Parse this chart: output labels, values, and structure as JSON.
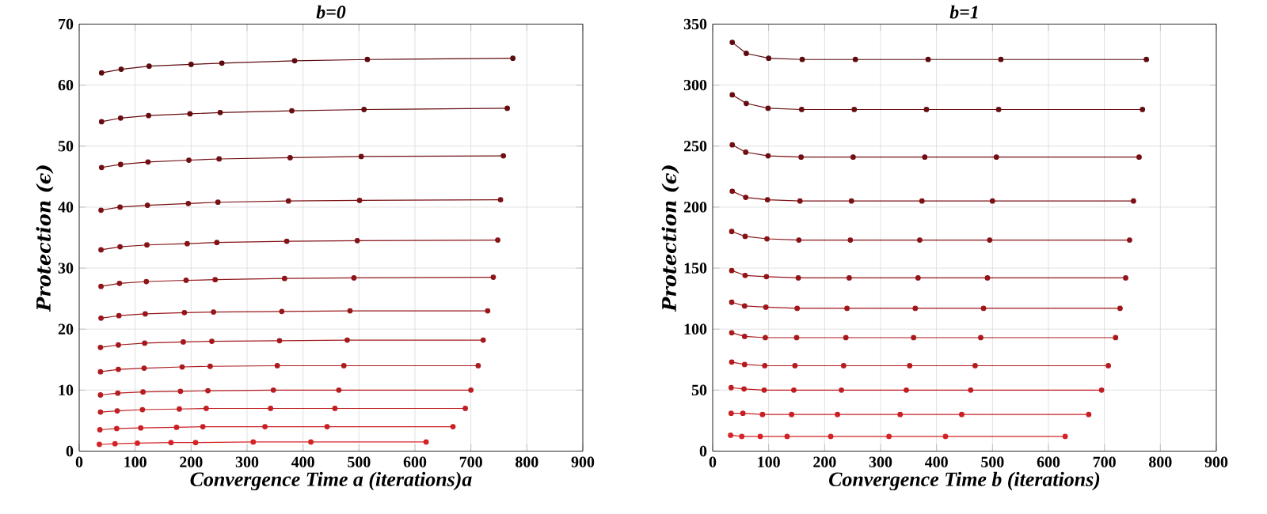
{
  "chart_data": [
    {
      "type": "line",
      "title": "b=0",
      "xlabel": "Convergence Time a (iterations)a",
      "ylabel": "Protection (ϵ)",
      "xlim": [
        0,
        900
      ],
      "xticks": [
        0,
        100,
        200,
        300,
        400,
        500,
        600,
        700,
        800,
        900
      ],
      "ylim": [
        0,
        70
      ],
      "yticks": [
        0,
        10,
        20,
        30,
        40,
        50,
        60,
        70
      ],
      "grid": true,
      "marker": "circle",
      "line_style": "solid",
      "series": [
        {
          "color": "#5c0a0e",
          "x": [
            40,
            75,
            125,
            200,
            255,
            385,
            515,
            775
          ],
          "values": [
            62,
            62.6,
            63.1,
            63.4,
            63.6,
            64,
            64.2,
            64.4
          ]
        },
        {
          "color": "#660c10",
          "x": [
            40,
            74,
            124,
            198,
            252,
            380,
            509,
            765
          ],
          "values": [
            54,
            54.6,
            55,
            55.3,
            55.5,
            55.8,
            56,
            56.2
          ]
        },
        {
          "color": "#700e12",
          "x": [
            40,
            74,
            123,
            196,
            250,
            377,
            504,
            758
          ],
          "values": [
            46.5,
            47,
            47.4,
            47.7,
            47.9,
            48.1,
            48.3,
            48.4
          ]
        },
        {
          "color": "#7a1014",
          "x": [
            39,
            73,
            122,
            195,
            248,
            374,
            501,
            753
          ],
          "values": [
            39.5,
            40,
            40.3,
            40.6,
            40.8,
            41,
            41.1,
            41.2
          ]
        },
        {
          "color": "#841216",
          "x": [
            39,
            73,
            121,
            193,
            246,
            371,
            497,
            748
          ],
          "values": [
            33,
            33.5,
            33.8,
            34,
            34.2,
            34.4,
            34.5,
            34.6
          ]
        },
        {
          "color": "#8e1418",
          "x": [
            39,
            72,
            120,
            191,
            243,
            367,
            491,
            740
          ],
          "values": [
            27,
            27.5,
            27.8,
            28,
            28.1,
            28.3,
            28.4,
            28.5
          ]
        },
        {
          "color": "#98161a",
          "x": [
            39,
            71,
            118,
            188,
            240,
            362,
            484,
            730
          ],
          "values": [
            21.8,
            22.2,
            22.5,
            22.7,
            22.8,
            22.9,
            23,
            23
          ]
        },
        {
          "color": "#a2181c",
          "x": [
            38,
            70,
            117,
            186,
            237,
            358,
            479,
            722
          ],
          "values": [
            17,
            17.4,
            17.7,
            17.9,
            18,
            18.1,
            18.2,
            18.2
          ]
        },
        {
          "color": "#ac1a1e",
          "x": [
            38,
            70,
            116,
            184,
            234,
            354,
            473,
            713
          ],
          "values": [
            13,
            13.4,
            13.6,
            13.8,
            13.9,
            14,
            14,
            14
          ]
        },
        {
          "color": "#b61c20",
          "x": [
            38,
            69,
            114,
            181,
            230,
            347,
            464,
            700
          ],
          "values": [
            9.2,
            9.5,
            9.7,
            9.8,
            9.9,
            10,
            10,
            10
          ]
        },
        {
          "color": "#c01e22",
          "x": [
            38,
            68,
            113,
            179,
            227,
            342,
            457,
            690
          ],
          "values": [
            6.4,
            6.6,
            6.8,
            6.9,
            7,
            7,
            7,
            7
          ]
        },
        {
          "color": "#ca2024",
          "x": [
            37,
            67,
            110,
            174,
            221,
            332,
            443,
            668
          ],
          "values": [
            3.5,
            3.7,
            3.8,
            3.9,
            4,
            4,
            4,
            4
          ]
        },
        {
          "color": "#d42226",
          "x": [
            36,
            64,
            104,
            164,
            208,
            311,
            414,
            620
          ],
          "values": [
            1.1,
            1.2,
            1.3,
            1.4,
            1.4,
            1.5,
            1.5,
            1.5
          ]
        }
      ]
    },
    {
      "type": "line",
      "title": "b=1",
      "xlabel": "Convergence Time b (iterations)",
      "ylabel": "Protection (ϵ)",
      "xlim": [
        0,
        900
      ],
      "xticks": [
        0,
        100,
        200,
        300,
        400,
        500,
        600,
        700,
        800,
        900
      ],
      "ylim": [
        0,
        350
      ],
      "yticks": [
        0,
        50,
        100,
        150,
        200,
        250,
        300,
        350
      ],
      "grid": true,
      "marker": "circle",
      "line_style": "solid",
      "series": [
        {
          "color": "#5c0a0e",
          "x": [
            35,
            60,
            100,
            160,
            255,
            385,
            515,
            775
          ],
          "values": [
            335,
            326,
            322,
            321,
            321,
            321,
            321,
            321
          ]
        },
        {
          "color": "#670c10",
          "x": [
            35,
            60,
            99,
            159,
            253,
            382,
            511,
            768
          ],
          "values": [
            292,
            285,
            281,
            280,
            280,
            280,
            280,
            280
          ]
        },
        {
          "color": "#720e12",
          "x": [
            35,
            59,
            99,
            158,
            251,
            379,
            507,
            762
          ],
          "values": [
            251,
            245,
            242,
            241,
            241,
            241,
            241,
            241
          ]
        },
        {
          "color": "#7d1014",
          "x": [
            35,
            59,
            98,
            156,
            248,
            374,
            500,
            752
          ],
          "values": [
            213,
            208,
            206,
            205,
            205,
            205,
            205,
            205
          ]
        },
        {
          "color": "#881216",
          "x": [
            34,
            58,
            97,
            154,
            246,
            370,
            495,
            745
          ],
          "values": [
            180,
            176,
            174,
            173,
            173,
            173,
            173,
            173
          ]
        },
        {
          "color": "#931418",
          "x": [
            34,
            58,
            96,
            153,
            244,
            367,
            491,
            738
          ],
          "values": [
            148,
            144,
            143,
            142,
            142,
            142,
            142,
            142
          ]
        },
        {
          "color": "#9e161a",
          "x": [
            34,
            57,
            95,
            151,
            240,
            362,
            484,
            728
          ],
          "values": [
            122,
            119,
            118,
            117,
            117,
            117,
            117,
            117
          ]
        },
        {
          "color": "#a9181c",
          "x": [
            34,
            57,
            94,
            150,
            238,
            359,
            479,
            720
          ],
          "values": [
            97,
            94,
            93,
            93,
            93,
            93,
            93,
            93
          ]
        },
        {
          "color": "#b41a1e",
          "x": [
            34,
            57,
            93,
            147,
            234,
            352,
            469,
            707
          ],
          "values": [
            73,
            71,
            70,
            70,
            70,
            70,
            70,
            70
          ]
        },
        {
          "color": "#bf1c20",
          "x": [
            33,
            56,
            92,
            145,
            230,
            346,
            461,
            695
          ],
          "values": [
            52,
            51,
            50,
            50,
            50,
            50,
            50,
            50
          ]
        },
        {
          "color": "#ca1e22",
          "x": [
            33,
            54,
            89,
            141,
            223,
            335,
            445,
            672
          ],
          "values": [
            31,
            31,
            30,
            30,
            30,
            30,
            30,
            30
          ]
        },
        {
          "color": "#d42226",
          "x": [
            32,
            52,
            85,
            133,
            211,
            315,
            416,
            630
          ],
          "values": [
            13,
            12,
            12,
            12,
            12,
            12,
            12,
            12
          ]
        }
      ]
    }
  ]
}
